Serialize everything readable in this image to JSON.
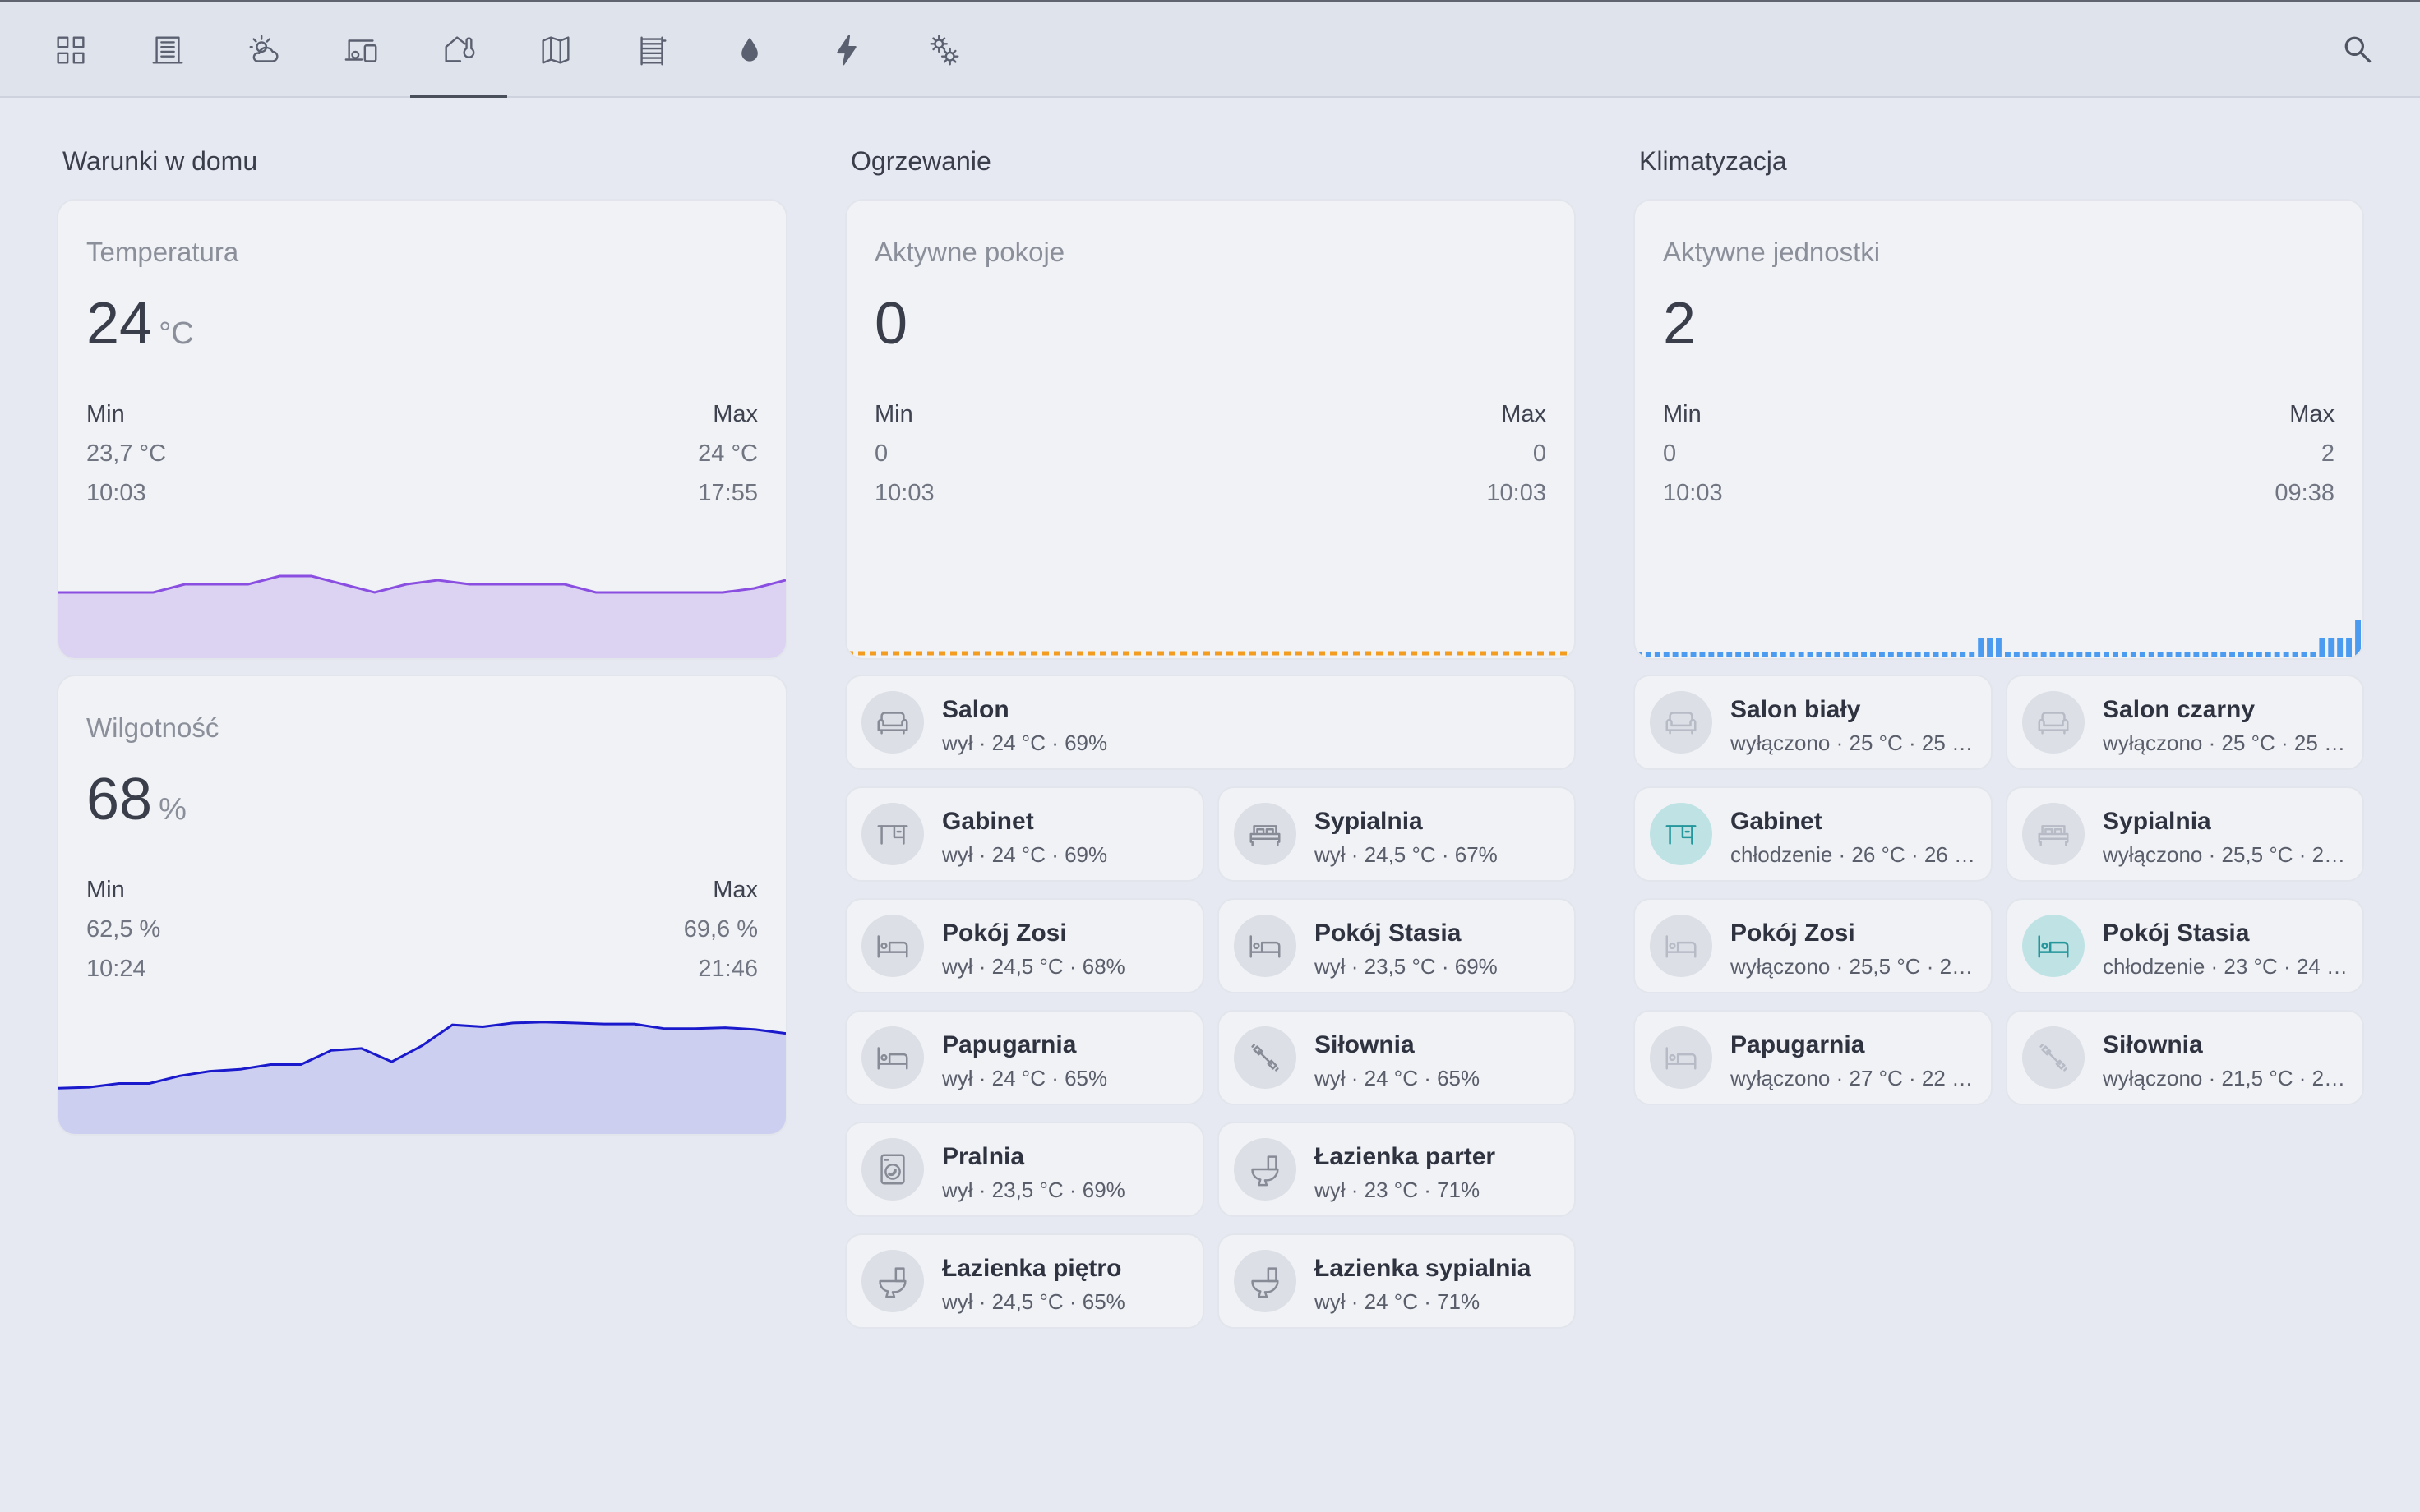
{
  "nav": {
    "tabs": [
      {
        "icon": "grid-icon"
      },
      {
        "icon": "building-icon"
      },
      {
        "icon": "weather-icon"
      },
      {
        "icon": "devices-icon"
      },
      {
        "icon": "home-thermometer-icon",
        "active": true
      },
      {
        "icon": "map-icon"
      },
      {
        "icon": "radiator-icon"
      },
      {
        "icon": "water-drop-icon"
      },
      {
        "icon": "lightning-icon"
      },
      {
        "icon": "gears-icon"
      }
    ],
    "search_icon": "search-icon"
  },
  "columns": {
    "home": {
      "title": "Warunki w domu"
    },
    "heating": {
      "title": "Ogrzewanie"
    },
    "ac": {
      "title": "Klimatyzacja"
    }
  },
  "temperature": {
    "title": "Temperatura",
    "value": "24",
    "unit": "°C",
    "min_label": "Min",
    "max_label": "Max",
    "min_value": "23,7 °C",
    "max_value": "24 °C",
    "min_time": "10:03",
    "max_time": "17:55",
    "color": "#8a4fe0",
    "chart_data": {
      "type": "area",
      "values": [
        23.7,
        23.7,
        23.7,
        23.7,
        23.8,
        23.8,
        23.8,
        23.9,
        23.9,
        23.8,
        23.7,
        23.8,
        23.85,
        23.8,
        23.8,
        23.8,
        23.8,
        23.7,
        23.7,
        23.7,
        23.7,
        23.7,
        23.75,
        23.85
      ]
    }
  },
  "humidity": {
    "title": "Wilgotność",
    "value": "68",
    "unit": "%",
    "min_label": "Min",
    "max_label": "Max",
    "min_value": "62,5 %",
    "max_value": "69,6 %",
    "min_time": "10:24",
    "max_time": "21:46",
    "color": "#1a1acc",
    "chart_data": {
      "type": "area",
      "values": [
        62.5,
        62.6,
        63.0,
        63.0,
        63.8,
        64.3,
        64.5,
        65.0,
        65.0,
        66.5,
        66.7,
        65.3,
        67.0,
        69.2,
        69.0,
        69.4,
        69.5,
        69.4,
        69.3,
        69.3,
        68.8,
        68.8,
        68.9,
        68.7,
        68.3
      ]
    }
  },
  "heating_card": {
    "title": "Aktywne pokoje",
    "value": "0",
    "min_label": "Min",
    "max_label": "Max",
    "min_value": "0",
    "max_value": "0",
    "min_time": "10:03",
    "max_time": "10:03",
    "color": "#f39c1f"
  },
  "ac_card": {
    "title": "Aktywne jednostki",
    "value": "2",
    "min_label": "Min",
    "max_label": "Max",
    "min_value": "0",
    "max_value": "2",
    "min_time": "10:03",
    "max_time": "09:38",
    "color": "#4b9bf0",
    "chart_data": {
      "type": "bar",
      "values": [
        0,
        0,
        0,
        0,
        0,
        0,
        0,
        0,
        0,
        0,
        0,
        0,
        0,
        0,
        0,
        0,
        0,
        0,
        0,
        0,
        0,
        0,
        0,
        0,
        0,
        0,
        0,
        0,
        0,
        0,
        0,
        0,
        0,
        0,
        0,
        0,
        0,
        0,
        1,
        1,
        1,
        0,
        0,
        0,
        0,
        0,
        0,
        0,
        0,
        0,
        0,
        0,
        0,
        0,
        0,
        0,
        0,
        0,
        0,
        0,
        0,
        0,
        0,
        0,
        0,
        0,
        0,
        0,
        0,
        0,
        0,
        0,
        0,
        0,
        0,
        0,
        1,
        1,
        1,
        1,
        2
      ]
    }
  },
  "heating_rooms": [
    {
      "name": "Salon",
      "state": "wył · 24 °C · 69%",
      "icon": "sofa-icon"
    },
    {
      "name": "Gabinet",
      "state": "wył · 24 °C · 69%",
      "icon": "desk-icon"
    },
    {
      "name": "Sypialnia",
      "state": "wył · 24,5 °C · 67%",
      "icon": "bed-double-icon"
    },
    {
      "name": "Pokój Zosi",
      "state": "wył · 24,5 °C · 68%",
      "icon": "bed-icon"
    },
    {
      "name": "Pokój Stasia",
      "state": "wył · 23,5 °C · 69%",
      "icon": "bed-icon"
    },
    {
      "name": "Papugarnia",
      "state": "wył · 24 °C · 65%",
      "icon": "bed-icon"
    },
    {
      "name": "Siłownia",
      "state": "wył · 24 °C · 65%",
      "icon": "dumbbell-icon"
    },
    {
      "name": "Pralnia",
      "state": "wył · 23,5 °C · 69%",
      "icon": "washing-machine-icon"
    },
    {
      "name": "Łazienka parter",
      "state": "wył · 23 °C · 71%",
      "icon": "toilet-icon"
    },
    {
      "name": "Łazienka piętro",
      "state": "wył · 24,5 °C · 65%",
      "icon": "toilet-icon"
    },
    {
      "name": "Łazienka sypialnia",
      "state": "wył · 24 °C · 71%",
      "icon": "toilet-icon"
    }
  ],
  "ac_rooms": [
    {
      "name": "Salon biały",
      "state": "wyłączono · 25 °C · 25 …",
      "icon": "sofa-icon",
      "active": false
    },
    {
      "name": "Salon czarny",
      "state": "wyłączono · 25 °C · 25 …",
      "icon": "sofa-icon",
      "active": false
    },
    {
      "name": "Gabinet",
      "state": "chłodzenie · 26 °C · 26 …",
      "icon": "desk-icon",
      "active": true
    },
    {
      "name": "Sypialnia",
      "state": "wyłączono · 25,5 °C · 2…",
      "icon": "bed-double-icon",
      "active": false
    },
    {
      "name": "Pokój Zosi",
      "state": "wyłączono · 25,5 °C · 2…",
      "icon": "bed-icon",
      "active": false
    },
    {
      "name": "Pokój Stasia",
      "state": "chłodzenie · 23 °C · 24 …",
      "icon": "bed-icon",
      "active": true
    },
    {
      "name": "Papugarnia",
      "state": "wyłączono · 27 °C · 22 …",
      "icon": "bed-icon",
      "active": false
    },
    {
      "name": "Siłownia",
      "state": "wyłączono · 21,5 °C · 2…",
      "icon": "dumbbell-icon",
      "active": false
    }
  ]
}
